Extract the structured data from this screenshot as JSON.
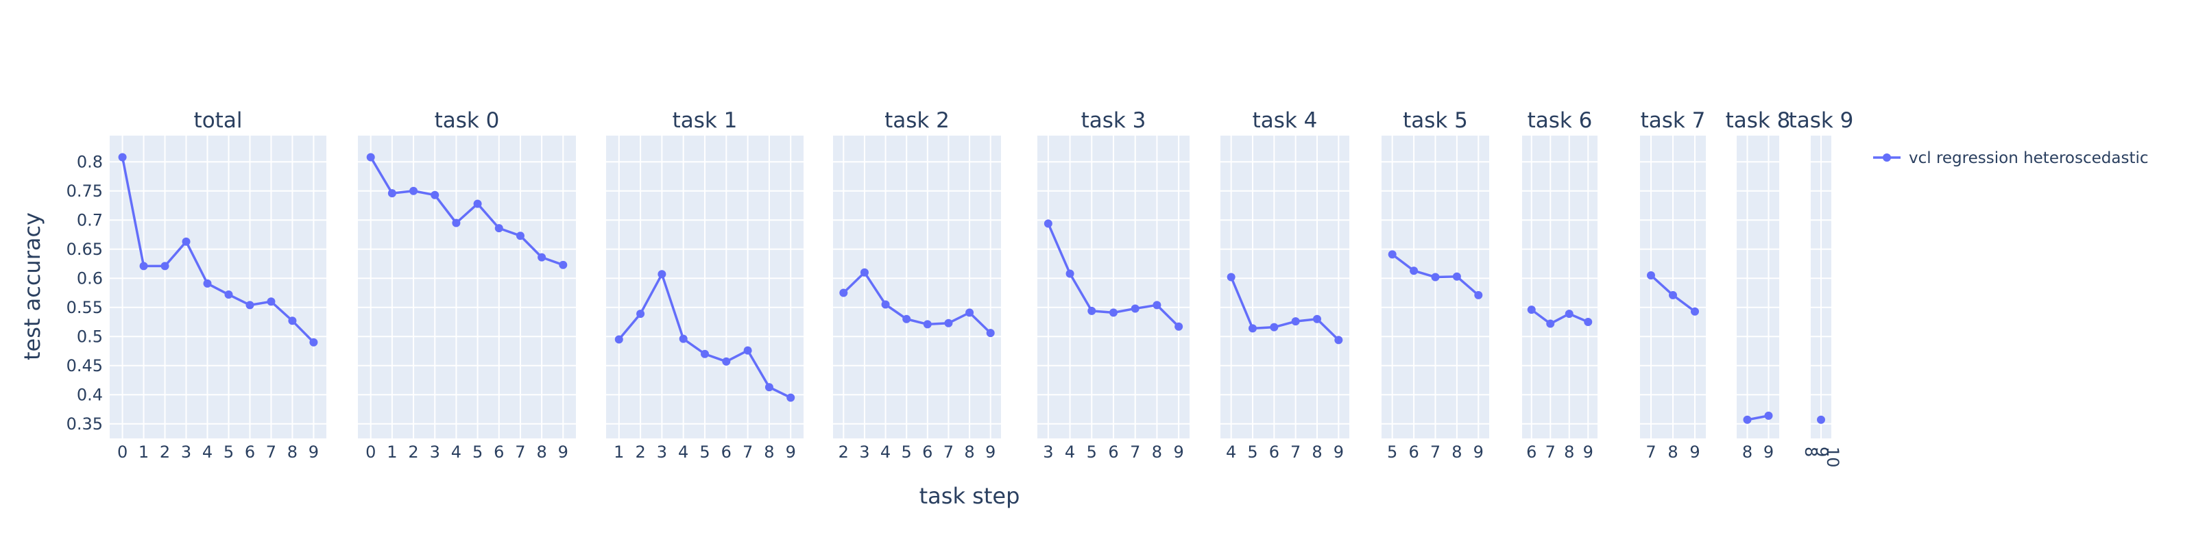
{
  "chart_data": {
    "type": "line",
    "xlabel": "task step",
    "ylabel": "test accuracy",
    "ylim": [
      0.325,
      0.845
    ],
    "yticks": [
      0.35,
      0.4,
      0.45,
      0.5,
      0.55,
      0.6,
      0.65,
      0.7,
      0.75,
      0.8
    ],
    "ytick_labels": [
      "0.35",
      "0.4",
      "0.45",
      "0.5",
      "0.55",
      "0.6",
      "0.65",
      "0.7",
      "0.75",
      "0.8"
    ],
    "grid": true,
    "legend_position": "top-right",
    "colors": {
      "series": "#636efa",
      "plot_bg": "#e5ecf6",
      "grid": "#ffffff",
      "text": "#2a3f5f"
    },
    "legend": [
      {
        "name": "vcl regression heteroscedastic",
        "color": "#636efa"
      }
    ],
    "panels": [
      {
        "title": "total",
        "xlim": [
          -0.6,
          9.6
        ],
        "x": [
          0,
          1,
          2,
          3,
          4,
          5,
          6,
          7,
          8,
          9
        ],
        "values": [
          0.808,
          0.621,
          0.621,
          0.663,
          0.591,
          0.572,
          0.554,
          0.56,
          0.527,
          0.49
        ]
      },
      {
        "title": "task 0",
        "xlim": [
          -0.6,
          9.6
        ],
        "x": [
          0,
          1,
          2,
          3,
          4,
          5,
          6,
          7,
          8,
          9
        ],
        "values": [
          0.808,
          0.746,
          0.75,
          0.743,
          0.695,
          0.728,
          0.686,
          0.673,
          0.636,
          0.623
        ]
      },
      {
        "title": "task 1",
        "xlim": [
          0.4,
          9.6
        ],
        "x": [
          1,
          2,
          3,
          4,
          5,
          6,
          7,
          8,
          9
        ],
        "values": [
          0.495,
          0.539,
          0.607,
          0.496,
          0.47,
          0.457,
          0.476,
          0.413,
          0.395
        ]
      },
      {
        "title": "task 2",
        "xlim": [
          1.5,
          9.5
        ],
        "x": [
          2,
          3,
          4,
          5,
          6,
          7,
          8,
          9
        ],
        "values": [
          0.575,
          0.61,
          0.555,
          0.53,
          0.521,
          0.523,
          0.541,
          0.506
        ]
      },
      {
        "title": "task 3",
        "xlim": [
          2.5,
          9.5
        ],
        "x": [
          3,
          4,
          5,
          6,
          7,
          8,
          9
        ],
        "values": [
          0.694,
          0.608,
          0.544,
          0.541,
          0.548,
          0.554,
          0.517
        ]
      },
      {
        "title": "task 4",
        "xlim": [
          3.5,
          9.5
        ],
        "x": [
          4,
          5,
          6,
          7,
          8,
          9
        ],
        "values": [
          0.602,
          0.514,
          0.516,
          0.526,
          0.53,
          0.494
        ]
      },
      {
        "title": "task 5",
        "xlim": [
          4.5,
          9.5
        ],
        "x": [
          5,
          6,
          7,
          8,
          9
        ],
        "values": [
          0.641,
          0.613,
          0.602,
          0.603,
          0.571
        ]
      },
      {
        "title": "task 6",
        "xlim": [
          5.5,
          9.5
        ],
        "x": [
          6,
          7,
          8,
          9
        ],
        "values": [
          0.546,
          0.522,
          0.539,
          0.525
        ]
      },
      {
        "title": "task 7",
        "xlim": [
          6.5,
          9.5
        ],
        "x": [
          7,
          8,
          9
        ],
        "values": [
          0.605,
          0.571,
          0.543
        ]
      },
      {
        "title": "task 8",
        "xlim": [
          7.5,
          9.5
        ],
        "x": [
          8,
          9
        ],
        "values": [
          0.357,
          0.364
        ]
      },
      {
        "title": "task 9",
        "xlim": [
          8,
          10
        ],
        "x": [
          9
        ],
        "x_tick_labels": [
          "8",
          "9",
          "10"
        ],
        "values": [
          0.357
        ]
      }
    ]
  }
}
